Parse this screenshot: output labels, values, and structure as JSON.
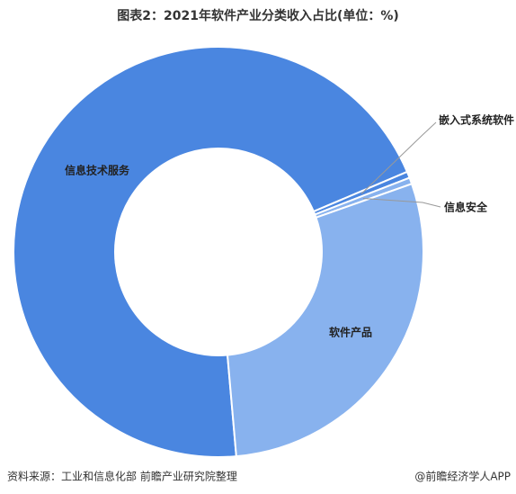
{
  "chart_data": {
    "type": "donut",
    "title": "图表2：2021年软件产业分类收入占比(单位：%)",
    "categories": [
      "信息技术服务",
      "嵌入式系统软件",
      "信息安全",
      "软件产品"
    ],
    "values": [
      70,
      0.5,
      0.5,
      29
    ],
    "colors": [
      "#4a86e0",
      "#4a86e0",
      "#88b2ee",
      "#88b2ee"
    ],
    "source": "资料来源：工业和信息化部 前瞻产业研究院整理",
    "credit": "@前瞻经济学人APP"
  }
}
